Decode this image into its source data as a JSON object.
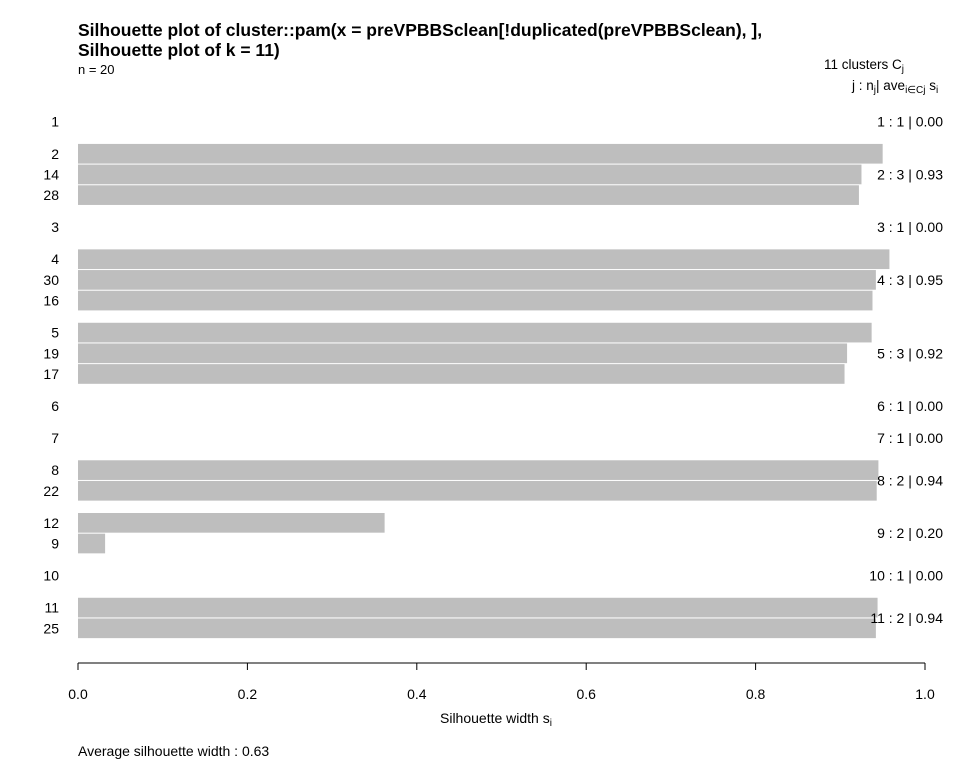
{
  "title": {
    "line1": "Silhouette plot of cluster::pam(x = preVPBBSclean[!duplicated(preVPBBSclean), ],",
    "line2": "Silhouette plot of     k = 11)"
  },
  "n_label": "n = 20",
  "legend": {
    "clusters_text": "11  clusters  C",
    "clusters_sub": "j",
    "col_j": "j :",
    "col_n": "n",
    "col_n_sub": "j",
    "col_ave": "| ave",
    "col_ave_sub": "i∈Cj",
    "col_s": "s",
    "col_s_sub": "i"
  },
  "xlabel_main": "Silhouette width s",
  "xlabel_sub": "i",
  "average_text": "Average silhouette width :  0.63",
  "chart_data": {
    "type": "bar",
    "orientation": "horizontal",
    "xlim": [
      0,
      1
    ],
    "x_ticks": [
      "0.0",
      "0.2",
      "0.4",
      "0.6",
      "0.8",
      "1.0"
    ],
    "bar_color": "#bebebe",
    "clusters": [
      {
        "summary": "1 :   1  |  0.00",
        "obs": [
          {
            "label": "1",
            "value": 0.0
          }
        ]
      },
      {
        "summary": "2 :   3  |  0.93",
        "obs": [
          {
            "label": "2",
            "value": 0.95
          },
          {
            "label": "14",
            "value": 0.925
          },
          {
            "label": "28",
            "value": 0.922
          }
        ]
      },
      {
        "summary": "3 :   1  |  0.00",
        "obs": [
          {
            "label": "3",
            "value": 0.0
          }
        ]
      },
      {
        "summary": "4 :   3  |  0.95",
        "obs": [
          {
            "label": "4",
            "value": 0.958
          },
          {
            "label": "30",
            "value": 0.942
          },
          {
            "label": "16",
            "value": 0.938
          }
        ]
      },
      {
        "summary": "5 :   3  |  0.92",
        "obs": [
          {
            "label": "5",
            "value": 0.937
          },
          {
            "label": "19",
            "value": 0.908
          },
          {
            "label": "17",
            "value": 0.905
          }
        ]
      },
      {
        "summary": "6 :   1  |  0.00",
        "obs": [
          {
            "label": "6",
            "value": 0.0
          }
        ]
      },
      {
        "summary": "7 :   1  |  0.00",
        "obs": [
          {
            "label": "7",
            "value": 0.0
          }
        ]
      },
      {
        "summary": "8 :   2  |  0.94",
        "obs": [
          {
            "label": "8",
            "value": 0.945
          },
          {
            "label": "22",
            "value": 0.943
          }
        ]
      },
      {
        "summary": "9 :   2  |  0.20",
        "obs": [
          {
            "label": "12",
            "value": 0.362
          },
          {
            "label": "9",
            "value": 0.032
          }
        ]
      },
      {
        "summary": "10 :   1  |  0.00",
        "obs": [
          {
            "label": "10",
            "value": 0.0
          }
        ]
      },
      {
        "summary": "11 :   2  |  0.94",
        "obs": [
          {
            "label": "11",
            "value": 0.944
          },
          {
            "label": "25",
            "value": 0.942
          }
        ]
      }
    ]
  }
}
